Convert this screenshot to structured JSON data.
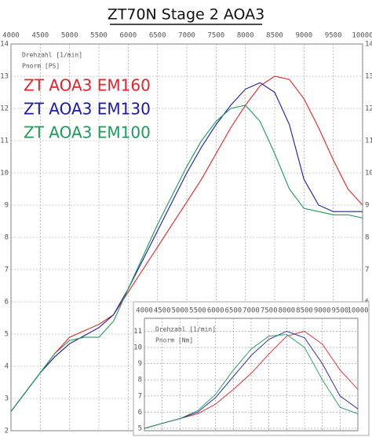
{
  "chart_data": [
    {
      "type": "line",
      "title": "ZT70N  Stage 2  AOA3",
      "x_label": "Drehzahl [1/min]",
      "y_label": "Pnorm [PS]",
      "x": [
        4000,
        4250,
        4500,
        4750,
        5000,
        5250,
        5500,
        5750,
        6000,
        6250,
        6500,
        6750,
        7000,
        7250,
        7500,
        7750,
        8000,
        8250,
        8500,
        8750,
        9000,
        9250,
        9500,
        9750,
        10000
      ],
      "series": [
        {
          "name": "ZT AOA3 EM160",
          "color": "#e0262c",
          "values": [
            2.6,
            3.2,
            3.8,
            4.4,
            4.9,
            5.1,
            5.3,
            5.6,
            6.3,
            7.0,
            7.7,
            8.4,
            9.1,
            9.8,
            10.6,
            11.4,
            12.1,
            12.7,
            13.0,
            12.9,
            12.3,
            11.4,
            10.4,
            9.5,
            9.0
          ]
        },
        {
          "name": "ZT AOA3 EM130",
          "color": "#1a1aa6",
          "values": [
            2.6,
            3.2,
            3.8,
            4.3,
            4.7,
            4.95,
            5.2,
            5.6,
            6.4,
            7.3,
            8.2,
            9.1,
            10.0,
            10.8,
            11.5,
            12.1,
            12.6,
            12.8,
            12.5,
            11.5,
            9.8,
            9.0,
            8.8,
            8.8,
            8.8
          ]
        },
        {
          "name": "ZT AOA3 EM100",
          "color": "#1e9a5a",
          "values": [
            2.6,
            3.2,
            3.8,
            4.4,
            4.8,
            4.9,
            4.9,
            5.4,
            6.4,
            7.4,
            8.4,
            9.3,
            10.2,
            11.0,
            11.6,
            12.0,
            12.1,
            11.6,
            10.6,
            9.5,
            8.9,
            8.8,
            8.7,
            8.7,
            8.6
          ]
        }
      ],
      "xlim": [
        4000,
        10000
      ],
      "ylim": [
        2,
        14
      ],
      "xticks": [
        4000,
        4500,
        5000,
        5500,
        6000,
        6500,
        7000,
        7500,
        8000,
        8500,
        9000,
        9500,
        10000
      ],
      "yticks": [
        2,
        3,
        4,
        5,
        6,
        7,
        8,
        9,
        10,
        11,
        12,
        13,
        14
      ],
      "grid": true
    },
    {
      "type": "line",
      "x_label": "Drehzahl [1/min]",
      "y_label": "Pnorm [Nm]",
      "x": [
        4000,
        4500,
        5000,
        5500,
        6000,
        6500,
        7000,
        7500,
        8000,
        8500,
        9000,
        9500,
        10000
      ],
      "series": [
        {
          "color": "#e0262c",
          "values": [
            5.0,
            5.3,
            5.6,
            5.9,
            6.5,
            7.4,
            8.4,
            9.6,
            10.7,
            11.0,
            10.2,
            8.6,
            7.4
          ]
        },
        {
          "color": "#1a1aa6",
          "values": [
            5.0,
            5.3,
            5.6,
            6.0,
            6.9,
            8.2,
            9.5,
            10.5,
            11.0,
            10.6,
            9.0,
            7.0,
            6.2
          ]
        },
        {
          "color": "#1e9a5a",
          "values": [
            5.0,
            5.3,
            5.6,
            6.1,
            7.1,
            8.6,
            9.9,
            10.7,
            10.8,
            10.0,
            8.0,
            6.3,
            5.9
          ]
        }
      ],
      "xlim": [
        4000,
        10000
      ],
      "ylim": [
        4.85,
        11.8
      ],
      "xticks": [
        4000,
        4500,
        5000,
        5500,
        6000,
        6500,
        7000,
        7500,
        8000,
        8500,
        9000,
        9500,
        10000
      ],
      "yticks": [
        5,
        6,
        7,
        8,
        9,
        10,
        11
      ],
      "grid": true
    }
  ]
}
